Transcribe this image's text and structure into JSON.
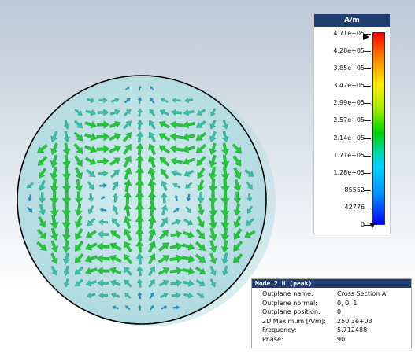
{
  "legend": {
    "unit": "A/m",
    "ticks": [
      "4.71e+05",
      "4.28e+05",
      "3.85e+05",
      "3.42e+05",
      "2.99e+05",
      "2.57e+05",
      "2.14e+05",
      "1.71e+05",
      "1.28e+05",
      "85552",
      "42776",
      "0"
    ]
  },
  "info": {
    "title": "Mode 2 H (peak)",
    "rows": [
      {
        "label": "Outplane name:",
        "value": "Cross Section A"
      },
      {
        "label": "Outplane normal:",
        "value": "0, 0, 1"
      },
      {
        "label": "Outplane position:",
        "value": "0"
      },
      {
        "label": "2D Maximum [A/m]:",
        "value": "250.3e+03"
      },
      {
        "label": "Frequency:",
        "value": "5.712488"
      },
      {
        "label": "Phase:",
        "value": "90"
      }
    ]
  },
  "colors": {
    "field_strong": "#22c933",
    "field_mid": "#34c1a8",
    "field_weak": "#1f96d8",
    "header": "#1f3f73"
  }
}
